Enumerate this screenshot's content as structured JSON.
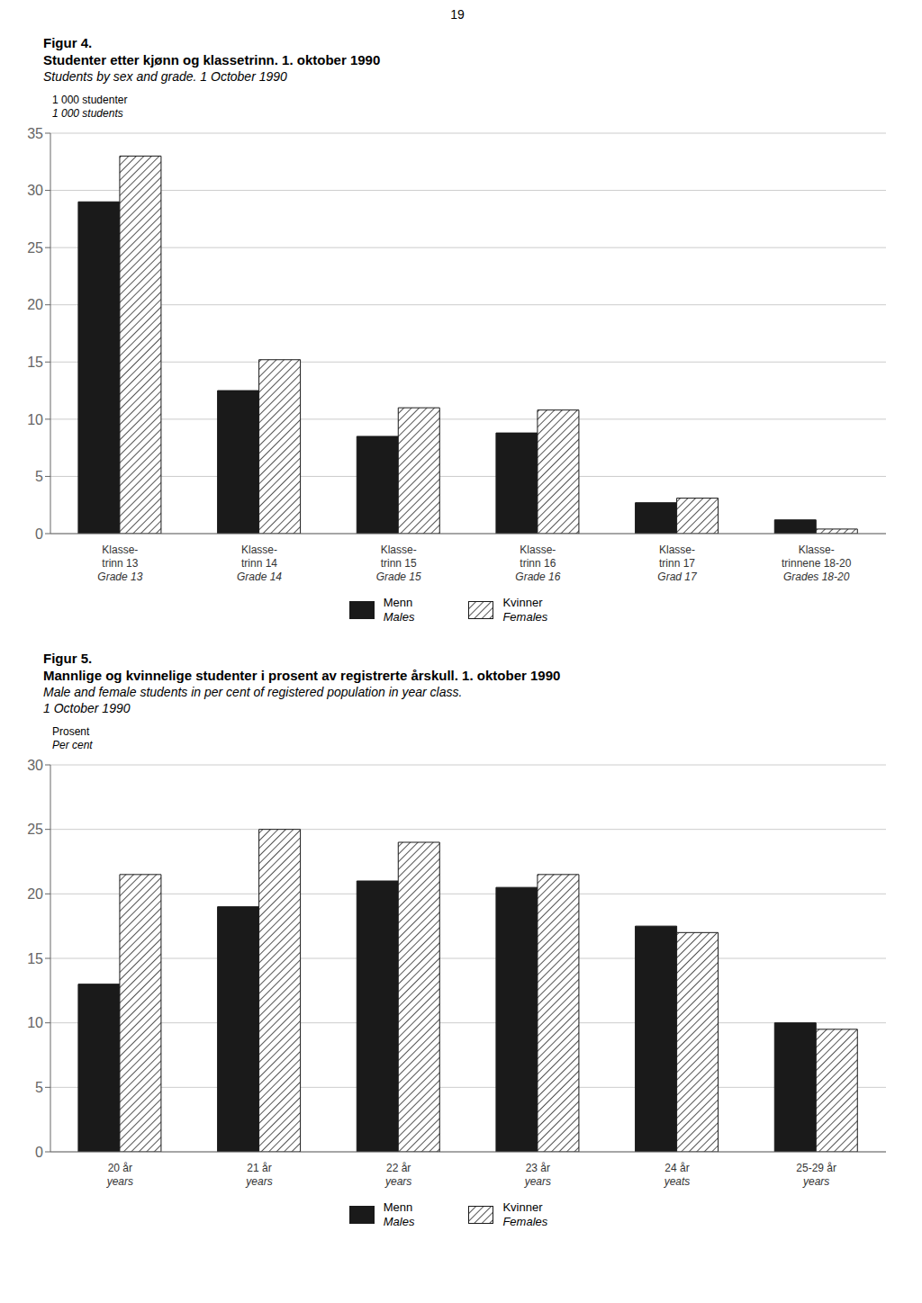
{
  "annotations": [
    "19"
  ],
  "chart_data": [
    {
      "type": "bar",
      "title": [
        "Figur 4.",
        "Studenter etter kjønn og klassetrinn. 1. oktober 1990"
      ],
      "subtitle": [
        "Students by sex and grade. 1 October 1990"
      ],
      "ylabel": [
        "1 000 studenter",
        "1 000 students"
      ],
      "categories": [
        "Klasse-\ntrinn 13\nGrade 13",
        "Klasse-\ntrinn 14\nGrade 14",
        "Klasse-\ntrinn 15\nGrade 15",
        "Klasse-\ntrinn 16\nGrade 16",
        "Klasse-\ntrinn 17\nGrad 17",
        "Klasse-\ntrinnene 18-20\nGrades 18-20"
      ],
      "series": [
        {
          "name": "Menn\nMales",
          "color": "#1a1a1a",
          "values": [
            29.0,
            12.5,
            8.5,
            8.8,
            2.7,
            1.2
          ]
        },
        {
          "name": "Kvinner\nFemales",
          "color": "#1a1a1a",
          "values": [
            33.0,
            15.2,
            11.0,
            10.8,
            3.1,
            0.4
          ]
        }
      ],
      "ylim": [
        0,
        35
      ],
      "yticks": [
        0,
        5,
        10,
        15,
        20,
        25,
        30,
        35
      ],
      "grid": true
    },
    {
      "type": "bar",
      "title": [
        "Figur 5.",
        "Mannlige og kvinnelige studenter i prosent av registrerte årskull. 1. oktober 1990"
      ],
      "subtitle": [
        "Male and female students in per cent of registered population in year class.",
        "1 October 1990"
      ],
      "ylabel": [
        "Prosent",
        "Per cent"
      ],
      "categories": [
        "20 år\nyears",
        "21 år\nyears",
        "22 år\nyears",
        "23 år\nyears",
        "24 år\nyeats",
        "25-29 år\nyears"
      ],
      "series": [
        {
          "name": "Menn\nMales",
          "color": "#1a1a1a",
          "values": [
            13.0,
            19.0,
            21.0,
            20.5,
            17.5,
            10.0
          ]
        },
        {
          "name": "Kvinner\nFemales",
          "color": "#1a1a1a",
          "values": [
            21.5,
            25.0,
            24.0,
            21.5,
            17.0,
            9.5
          ]
        }
      ],
      "ylim": [
        0,
        30
      ],
      "yticks": [
        0,
        5,
        10,
        15,
        20,
        25,
        30
      ],
      "grid": true
    }
  ]
}
